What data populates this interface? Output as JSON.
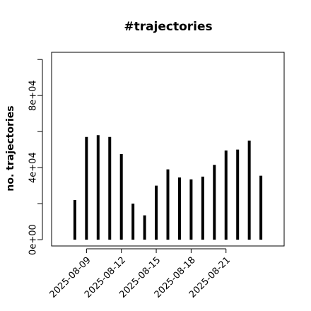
{
  "chart_data": {
    "type": "bar",
    "title": "#trajectories",
    "y_label": "no. trajectories",
    "x": [
      "2025-08-08",
      "2025-08-09",
      "2025-08-10",
      "2025-08-11",
      "2025-08-12",
      "2025-08-13",
      "2025-08-14",
      "2025-08-15",
      "2025-08-16",
      "2025-08-17",
      "2025-08-18",
      "2025-08-19",
      "2025-08-20",
      "2025-08-21",
      "2025-08-22",
      "2025-08-23",
      "2025-08-24"
    ],
    "values": [
      22000,
      57000,
      58000,
      57000,
      47500,
      20000,
      13500,
      30000,
      39000,
      34500,
      33500,
      35000,
      41500,
      49500,
      50000,
      55000,
      35500
    ],
    "color": "#000000",
    "xlim": [
      "2025-08-06",
      "2025-08-26"
    ],
    "xticks": [
      "2025-08-09",
      "2025-08-12",
      "2025-08-15",
      "2025-08-18",
      "2025-08-21"
    ],
    "ylim": [
      -3500,
      104000
    ],
    "yticks": [
      {
        "value": 0,
        "label": "0e+00"
      },
      {
        "value": 20000
      },
      {
        "value": 40000,
        "label": "4e+04"
      },
      {
        "value": 60000
      },
      {
        "value": 80000,
        "label": "8e+04"
      },
      {
        "value": 100000
      }
    ]
  }
}
